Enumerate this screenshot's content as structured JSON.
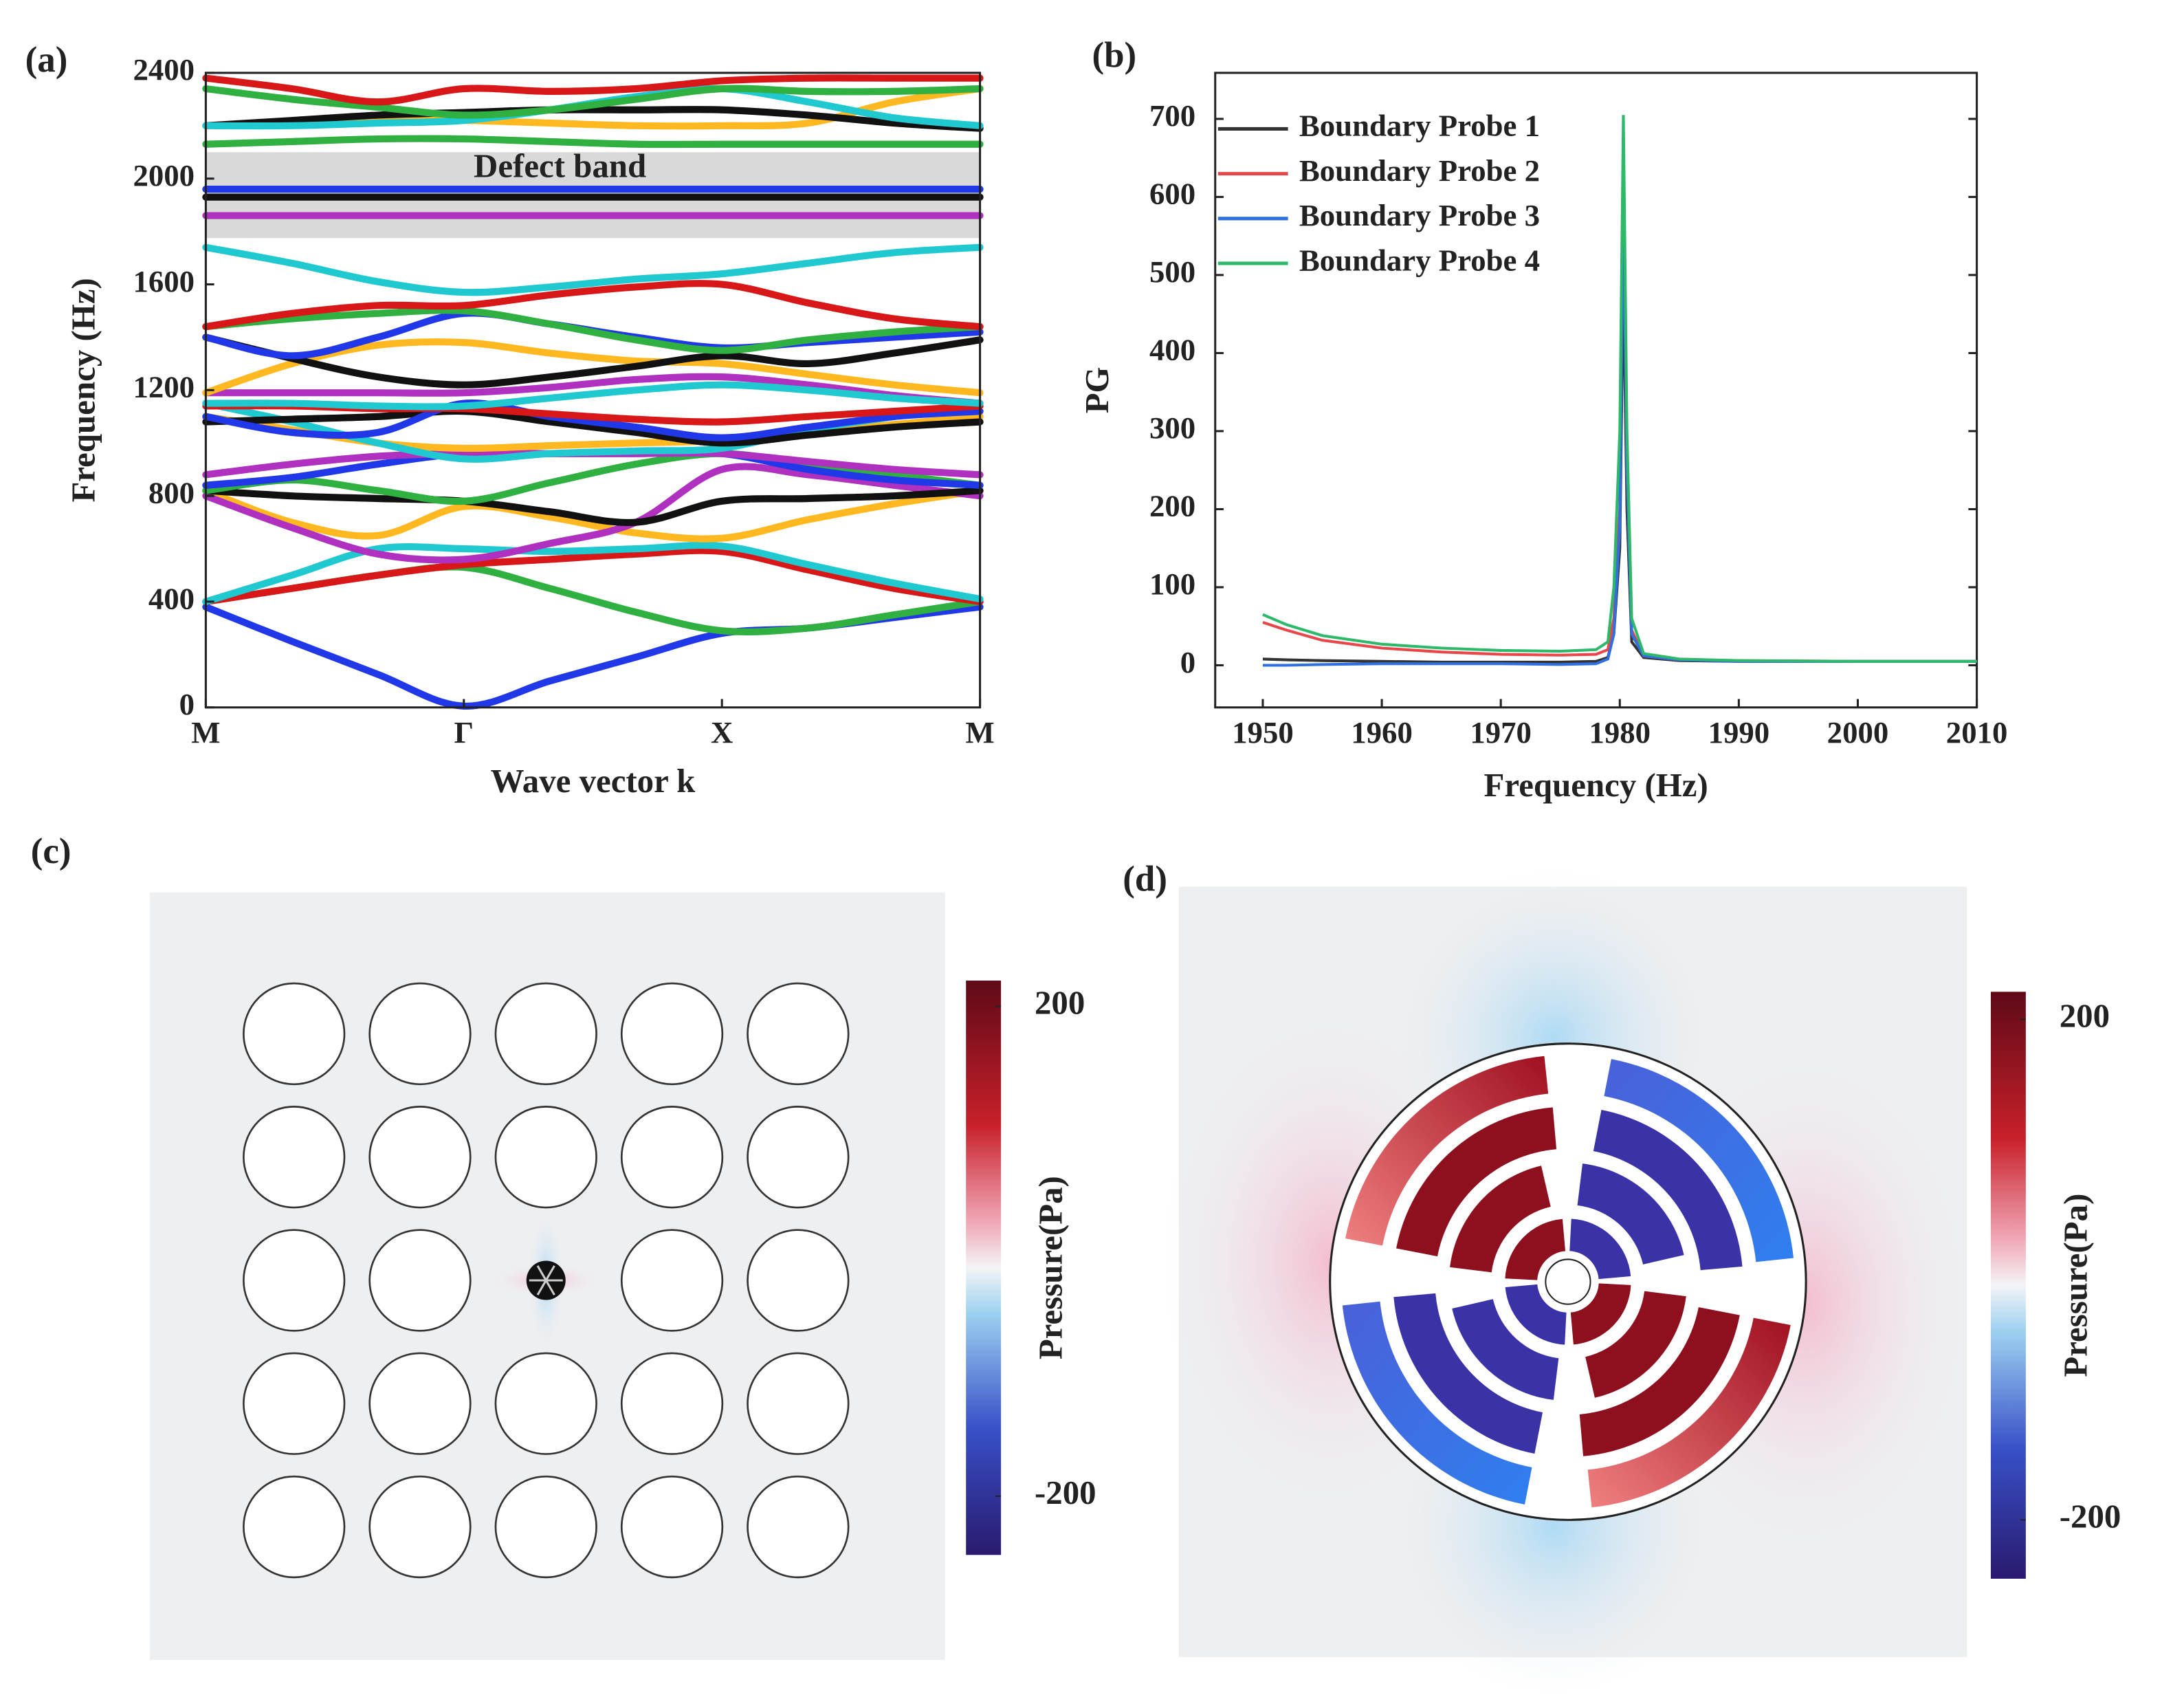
{
  "chart_data": [
    {
      "type": "band",
      "panel_label": "(a)",
      "xlabel": "Wave vector k",
      "ylabel": "Frequency (Hz)",
      "annotation": "Defect band",
      "shaded_band": [
        1775,
        2100
      ],
      "categories": [
        "M",
        null,
        null,
        "Γ",
        null,
        null,
        "X",
        null,
        null,
        "M"
      ],
      "ylim": [
        0,
        2400
      ],
      "yticks": [
        0,
        400,
        800,
        1200,
        1600,
        2000,
        2400
      ],
      "series": [
        {
          "color": "#2038e8",
          "values": [
            380,
            250,
            125,
            5,
            100,
            190,
            280,
            300,
            340,
            380
          ]
        },
        {
          "color": "#30b040",
          "values": [
            400,
            450,
            500,
            530,
            450,
            360,
            290,
            300,
            350,
            400
          ]
        },
        {
          "color": "#d81818",
          "values": [
            400,
            450,
            500,
            540,
            560,
            580,
            590,
            520,
            450,
            400
          ]
        },
        {
          "color": "#20c8d0",
          "values": [
            400,
            500,
            600,
            600,
            590,
            600,
            610,
            540,
            470,
            410
          ]
        },
        {
          "color": "#ffb820",
          "values": [
            820,
            700,
            650,
            760,
            720,
            660,
            640,
            710,
            770,
            820
          ]
        },
        {
          "color": "#b030c0",
          "values": [
            800,
            680,
            580,
            560,
            620,
            700,
            900,
            880,
            840,
            800
          ]
        },
        {
          "color": "#111111",
          "values": [
            820,
            800,
            790,
            780,
            740,
            700,
            780,
            790,
            800,
            820
          ]
        },
        {
          "color": "#30b040",
          "values": [
            820,
            860,
            820,
            780,
            850,
            920,
            960,
            920,
            880,
            840
          ]
        },
        {
          "color": "#2038e8",
          "values": [
            840,
            870,
            920,
            960,
            960,
            960,
            960,
            900,
            860,
            840
          ]
        },
        {
          "color": "#b030c0",
          "values": [
            880,
            920,
            950,
            960,
            960,
            960,
            960,
            930,
            900,
            880
          ]
        },
        {
          "color": "#ffb820",
          "values": [
            1100,
            1050,
            1000,
            980,
            990,
            1000,
            1010,
            1040,
            1070,
            1100
          ]
        },
        {
          "color": "#20c8d0",
          "values": [
            1150,
            1080,
            1000,
            940,
            960,
            970,
            980,
            1050,
            1100,
            1150
          ]
        },
        {
          "color": "#111111",
          "values": [
            1080,
            1090,
            1100,
            1120,
            1080,
            1040,
            1000,
            1030,
            1060,
            1080
          ]
        },
        {
          "color": "#2038e8",
          "values": [
            1100,
            1040,
            1040,
            1150,
            1100,
            1060,
            1020,
            1060,
            1100,
            1120
          ]
        },
        {
          "color": "#d81818",
          "values": [
            1140,
            1140,
            1130,
            1130,
            1110,
            1090,
            1080,
            1100,
            1120,
            1140
          ]
        },
        {
          "color": "#b030c0",
          "values": [
            1190,
            1190,
            1190,
            1190,
            1210,
            1240,
            1250,
            1220,
            1180,
            1150
          ]
        },
        {
          "color": "#ffb820",
          "values": [
            1190,
            1300,
            1370,
            1380,
            1340,
            1310,
            1300,
            1260,
            1220,
            1190
          ]
        },
        {
          "color": "#20c8d0",
          "values": [
            1150,
            1150,
            1140,
            1140,
            1170,
            1200,
            1220,
            1200,
            1170,
            1150
          ]
        },
        {
          "color": "#111111",
          "values": [
            1400,
            1320,
            1250,
            1220,
            1250,
            1290,
            1330,
            1300,
            1340,
            1390
          ]
        },
        {
          "color": "#2038e8",
          "values": [
            1400,
            1330,
            1400,
            1490,
            1450,
            1400,
            1360,
            1380,
            1400,
            1420
          ]
        },
        {
          "color": "#30b040",
          "values": [
            1440,
            1470,
            1490,
            1500,
            1450,
            1390,
            1350,
            1390,
            1420,
            1440
          ]
        },
        {
          "color": "#d81818",
          "values": [
            1440,
            1490,
            1520,
            1520,
            1560,
            1590,
            1600,
            1530,
            1470,
            1440
          ]
        },
        {
          "color": "#20c8d0",
          "values": [
            1740,
            1680,
            1610,
            1570,
            1590,
            1620,
            1640,
            1680,
            1720,
            1740
          ]
        },
        {
          "color": "#b030c0",
          "values": [
            1860,
            1860,
            1860,
            1860,
            1860,
            1860,
            1860,
            1860,
            1860,
            1860
          ]
        },
        {
          "color": "#111111",
          "values": [
            1930,
            1930,
            1930,
            1930,
            1930,
            1930,
            1930,
            1930,
            1930,
            1930
          ]
        },
        {
          "color": "#2038e8",
          "values": [
            1960,
            1960,
            1960,
            1960,
            1960,
            1960,
            1960,
            1960,
            1960,
            1960
          ]
        },
        {
          "color": "#30b040",
          "values": [
            2130,
            2140,
            2150,
            2150,
            2140,
            2130,
            2130,
            2130,
            2130,
            2130
          ]
        },
        {
          "color": "#ffb820",
          "values": [
            2200,
            2210,
            2220,
            2220,
            2210,
            2200,
            2200,
            2210,
            2290,
            2340
          ]
        },
        {
          "color": "#111111",
          "values": [
            2200,
            2220,
            2240,
            2250,
            2260,
            2260,
            2260,
            2240,
            2210,
            2190
          ]
        },
        {
          "color": "#20c8d0",
          "values": [
            2200,
            2200,
            2210,
            2220,
            2260,
            2310,
            2340,
            2290,
            2230,
            2200
          ]
        },
        {
          "color": "#30b040",
          "values": [
            2340,
            2300,
            2270,
            2240,
            2260,
            2300,
            2340,
            2330,
            2330,
            2340
          ]
        },
        {
          "color": "#d81818",
          "values": [
            2380,
            2340,
            2290,
            2340,
            2330,
            2340,
            2370,
            2380,
            2380,
            2380
          ]
        }
      ]
    },
    {
      "type": "line",
      "panel_label": "(b)",
      "xlabel": "Frequency (Hz)",
      "ylabel": "PG",
      "xlim": [
        1946,
        2010
      ],
      "xticks": [
        1950,
        1960,
        1970,
        1980,
        1990,
        2000,
        2010
      ],
      "ylim": [
        -54,
        759
      ],
      "yticks": [
        0,
        100,
        200,
        300,
        400,
        500,
        600,
        700
      ],
      "legend": "upper left",
      "x": [
        1950,
        1952,
        1955,
        1960,
        1965,
        1970,
        1975,
        1978,
        1979,
        1979.5,
        1980,
        1980.3,
        1980.6,
        1981,
        1982,
        1985,
        1990,
        2000,
        2010
      ],
      "series": [
        {
          "name": "Boundary Probe 1",
          "color": "#333333",
          "values": [
            8,
            7,
            6,
            5,
            4,
            4,
            4,
            5,
            10,
            40,
            150,
            500,
            200,
            30,
            10,
            6,
            5,
            5,
            5
          ]
        },
        {
          "name": "Boundary Probe 2",
          "color": "#e8474a",
          "values": [
            55,
            45,
            32,
            22,
            17,
            14,
            13,
            14,
            20,
            60,
            200,
            650,
            250,
            45,
            12,
            7,
            6,
            5,
            5
          ]
        },
        {
          "name": "Boundary Probe 3",
          "color": "#2f6fe0",
          "values": [
            0,
            0,
            1,
            2,
            2,
            2,
            1,
            2,
            8,
            40,
            180,
            600,
            250,
            40,
            12,
            7,
            5,
            5,
            5
          ]
        },
        {
          "name": "Boundary Probe 4",
          "color": "#2eb86a",
          "values": [
            65,
            52,
            38,
            27,
            22,
            19,
            18,
            20,
            30,
            100,
            300,
            705,
            300,
            60,
            15,
            8,
            6,
            5,
            5
          ]
        }
      ]
    },
    {
      "type": "field",
      "panel_label": "(c)",
      "colorbar_label": "Pressure(Pa)",
      "clim": [
        -248,
        221
      ],
      "cticks": [
        200,
        -200
      ]
    },
    {
      "type": "field",
      "panel_label": "(d)",
      "colorbar_label": "Pressure(Pa)",
      "clim": [
        -247,
        222
      ],
      "cticks": [
        200,
        -200
      ]
    }
  ]
}
